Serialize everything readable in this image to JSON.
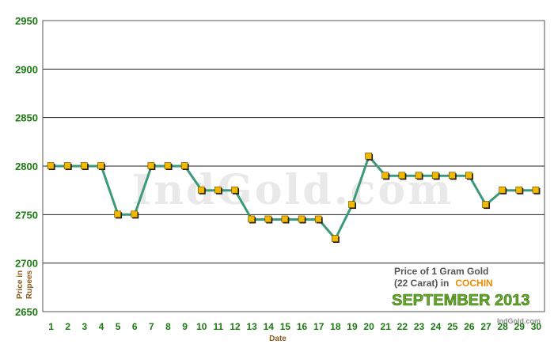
{
  "chart_data": {
    "type": "line",
    "xlabel": "Date",
    "ylabel": "Price in Rupees",
    "ylim": [
      2650,
      2950
    ],
    "yticks": [
      2650,
      2700,
      2750,
      2800,
      2850,
      2900,
      2950
    ],
    "grid": true,
    "x": [
      1,
      2,
      3,
      4,
      5,
      6,
      7,
      8,
      9,
      10,
      11,
      12,
      13,
      14,
      15,
      16,
      17,
      18,
      19,
      20,
      21,
      22,
      23,
      24,
      25,
      26,
      27,
      28,
      29,
      30
    ],
    "series": [
      {
        "values": [
          2800,
          2800,
          2800,
          2800,
          2750,
          2750,
          2800,
          2800,
          2800,
          2775,
          2775,
          2775,
          2745,
          2745,
          2745,
          2745,
          2745,
          2725,
          2760,
          2810,
          2790,
          2790,
          2790,
          2790,
          2790,
          2790,
          2760,
          2775,
          2775,
          2775
        ]
      }
    ],
    "caption": {
      "line1": "Price of 1 Gram Gold",
      "line2_prefix": "(22 Carat) in",
      "city": "COCHIN",
      "month": "SEPTEMBER 2013"
    },
    "watermark": "IndGold.com",
    "credit": "IndGold.com",
    "colors": {
      "line": "#3a9a7a",
      "marker_fill": "#f5b800",
      "marker_shadow": "#1a1a1a",
      "tick_text": "#1c7a12",
      "axis_title": "#8a5a1c",
      "caption_city": "#f08a00",
      "caption_month": "#63a92a"
    }
  }
}
